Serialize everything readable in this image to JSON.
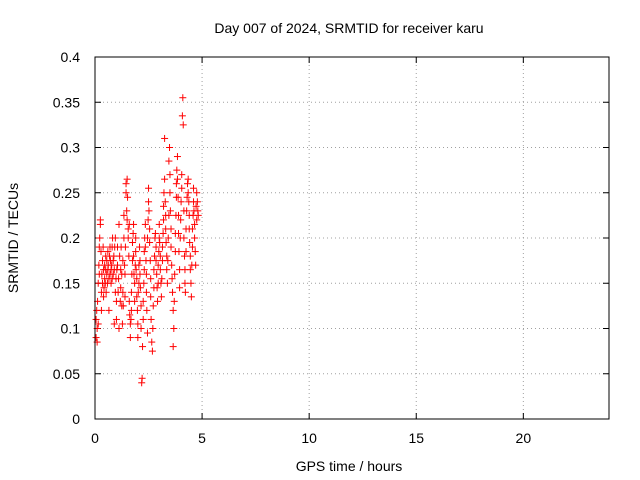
{
  "chart_data": {
    "type": "scatter",
    "title": "Day 007 of 2024, SRMTID for receiver karu",
    "xlabel": "GPS time / hours",
    "ylabel": "SRMTID / TECUs",
    "xlim": [
      0,
      24
    ],
    "ylim": [
      0,
      0.4
    ],
    "x_ticks": [
      0,
      5,
      10,
      15,
      20
    ],
    "x_tick_labels": [
      "0",
      "5",
      "10",
      "15",
      "20"
    ],
    "y_ticks": [
      0,
      0.05,
      0.1,
      0.15,
      0.2,
      0.25,
      0.3,
      0.35,
      0.4
    ],
    "y_tick_labels": [
      "0",
      "0.05",
      "0.1",
      "0.15",
      "0.2",
      "0.25",
      "0.3",
      "0.35",
      "0.4"
    ],
    "grid": true,
    "marker": "plus",
    "color": "#ff0000",
    "series": [
      {
        "name": "SRMTID",
        "points": [
          [
            0.05,
            0.09
          ],
          [
            0.05,
            0.11
          ],
          [
            0.08,
            0.12
          ],
          [
            0.1,
            0.085
          ],
          [
            0.1,
            0.1
          ],
          [
            0.12,
            0.13
          ],
          [
            0.15,
            0.15
          ],
          [
            0.15,
            0.105
          ],
          [
            0.18,
            0.17
          ],
          [
            0.2,
            0.19
          ],
          [
            0.2,
            0.16
          ],
          [
            0.22,
            0.2
          ],
          [
            0.25,
            0.215
          ],
          [
            0.25,
            0.22
          ],
          [
            0.28,
            0.185
          ],
          [
            0.3,
            0.14
          ],
          [
            0.3,
            0.12
          ],
          [
            0.32,
            0.16
          ],
          [
            0.35,
            0.175
          ],
          [
            0.35,
            0.15
          ],
          [
            0.38,
            0.19
          ],
          [
            0.4,
            0.135
          ],
          [
            0.4,
            0.165
          ],
          [
            0.42,
            0.145
          ],
          [
            0.45,
            0.17
          ],
          [
            0.45,
            0.155
          ],
          [
            0.48,
            0.15
          ],
          [
            0.5,
            0.18
          ],
          [
            0.5,
            0.165
          ],
          [
            0.52,
            0.14
          ],
          [
            0.55,
            0.16
          ],
          [
            0.55,
            0.175
          ],
          [
            0.58,
            0.15
          ],
          [
            0.6,
            0.165
          ],
          [
            0.6,
            0.185
          ],
          [
            0.62,
            0.17
          ],
          [
            0.65,
            0.155
          ],
          [
            0.65,
            0.12
          ],
          [
            0.68,
            0.18
          ],
          [
            0.7,
            0.16
          ],
          [
            0.7,
            0.19
          ],
          [
            0.72,
            0.175
          ],
          [
            0.75,
            0.15
          ],
          [
            0.75,
            0.165
          ],
          [
            0.78,
            0.17
          ],
          [
            0.8,
            0.155
          ],
          [
            0.8,
            0.19
          ],
          [
            0.82,
            0.2
          ],
          [
            0.85,
            0.175
          ],
          [
            0.85,
            0.16
          ],
          [
            0.88,
            0.18
          ],
          [
            0.9,
            0.165
          ],
          [
            0.9,
            0.105
          ],
          [
            0.92,
            0.19
          ],
          [
            0.95,
            0.2
          ],
          [
            0.95,
            0.14
          ],
          [
            0.98,
            0.155
          ],
          [
            1.0,
            0.11
          ],
          [
            1.0,
            0.13
          ],
          [
            1.02,
            0.165
          ],
          [
            1.05,
            0.17
          ],
          [
            1.05,
            0.19
          ],
          [
            1.08,
            0.14
          ],
          [
            1.1,
            0.155
          ],
          [
            1.12,
            0.215
          ],
          [
            1.12,
            0.1
          ],
          [
            1.15,
            0.18
          ],
          [
            1.18,
            0.13
          ],
          [
            1.2,
            0.145
          ],
          [
            1.2,
            0.165
          ],
          [
            1.22,
            0.19
          ],
          [
            1.25,
            0.16
          ],
          [
            1.25,
            0.125
          ],
          [
            1.28,
            0.105
          ],
          [
            1.3,
            0.14
          ],
          [
            1.3,
            0.175
          ],
          [
            1.32,
            0.125
          ],
          [
            1.35,
            0.225
          ],
          [
            1.35,
            0.2
          ],
          [
            1.38,
            0.17
          ],
          [
            1.4,
            0.135
          ],
          [
            1.4,
            0.16
          ],
          [
            1.42,
            0.19
          ],
          [
            1.45,
            0.26
          ],
          [
            1.45,
            0.25
          ],
          [
            1.48,
            0.23
          ],
          [
            1.5,
            0.22
          ],
          [
            1.5,
            0.265
          ],
          [
            1.52,
            0.245
          ],
          [
            1.55,
            0.21
          ],
          [
            1.55,
            0.2
          ],
          [
            1.58,
            0.18
          ],
          [
            1.6,
            0.215
          ],
          [
            1.6,
            0.13
          ],
          [
            1.62,
            0.115
          ],
          [
            1.65,
            0.105
          ],
          [
            1.65,
            0.09
          ],
          [
            1.68,
            0.11
          ],
          [
            1.7,
            0.12
          ],
          [
            1.7,
            0.14
          ],
          [
            1.72,
            0.16
          ],
          [
            1.75,
            0.175
          ],
          [
            1.75,
            0.195
          ],
          [
            1.78,
            0.205
          ],
          [
            1.8,
            0.215
          ],
          [
            1.8,
            0.18
          ],
          [
            1.82,
            0.16
          ],
          [
            1.85,
            0.15
          ],
          [
            1.85,
            0.13
          ],
          [
            1.88,
            0.17
          ],
          [
            1.9,
            0.185
          ],
          [
            1.9,
            0.2
          ],
          [
            1.92,
            0.165
          ],
          [
            1.95,
            0.155
          ],
          [
            1.95,
            0.135
          ],
          [
            1.98,
            0.12
          ],
          [
            2.0,
            0.105
          ],
          [
            2.0,
            0.09
          ],
          [
            2.02,
            0.14
          ],
          [
            2.05,
            0.15
          ],
          [
            2.05,
            0.17
          ],
          [
            2.08,
            0.19
          ],
          [
            2.1,
            0.175
          ],
          [
            2.1,
            0.16
          ],
          [
            2.12,
            0.145
          ],
          [
            2.15,
            0.125
          ],
          [
            2.15,
            0.1
          ],
          [
            2.18,
            0.04
          ],
          [
            2.2,
            0.045
          ],
          [
            2.22,
            0.08
          ],
          [
            2.25,
            0.11
          ],
          [
            2.25,
            0.13
          ],
          [
            2.28,
            0.15
          ],
          [
            2.3,
            0.165
          ],
          [
            2.3,
            0.185
          ],
          [
            2.32,
            0.2
          ],
          [
            2.35,
            0.215
          ],
          [
            2.35,
            0.19
          ],
          [
            2.38,
            0.175
          ],
          [
            2.4,
            0.16
          ],
          [
            2.4,
            0.14
          ],
          [
            2.42,
            0.12
          ],
          [
            2.45,
            0.095
          ],
          [
            2.45,
            0.2
          ],
          [
            2.48,
            0.22
          ],
          [
            2.5,
            0.24
          ],
          [
            2.5,
            0.255
          ],
          [
            2.52,
            0.23
          ],
          [
            2.55,
            0.21
          ],
          [
            2.55,
            0.195
          ],
          [
            2.58,
            0.175
          ],
          [
            2.6,
            0.155
          ],
          [
            2.6,
            0.135
          ],
          [
            2.62,
            0.11
          ],
          [
            2.65,
            0.085
          ],
          [
            2.68,
            0.075
          ],
          [
            2.7,
            0.1
          ],
          [
            2.72,
            0.125
          ],
          [
            2.75,
            0.145
          ],
          [
            2.75,
            0.165
          ],
          [
            2.78,
            0.18
          ],
          [
            2.8,
            0.2
          ],
          [
            2.82,
            0.205
          ],
          [
            2.85,
            0.19
          ],
          [
            2.85,
            0.175
          ],
          [
            2.88,
            0.16
          ],
          [
            2.9,
            0.145
          ],
          [
            2.92,
            0.13
          ],
          [
            2.95,
            0.15
          ],
          [
            2.95,
            0.17
          ],
          [
            2.98,
            0.185
          ],
          [
            3.0,
            0.2
          ],
          [
            3.0,
            0.215
          ],
          [
            3.02,
            0.195
          ],
          [
            3.05,
            0.18
          ],
          [
            3.05,
            0.165
          ],
          [
            3.08,
            0.15
          ],
          [
            3.1,
            0.135
          ],
          [
            3.12,
            0.155
          ],
          [
            3.15,
            0.175
          ],
          [
            3.15,
            0.19
          ],
          [
            3.18,
            0.205
          ],
          [
            3.2,
            0.22
          ],
          [
            3.2,
            0.235
          ],
          [
            3.22,
            0.25
          ],
          [
            3.25,
            0.265
          ],
          [
            3.25,
            0.31
          ],
          [
            3.28,
            0.24
          ],
          [
            3.3,
            0.225
          ],
          [
            3.3,
            0.21
          ],
          [
            3.32,
            0.195
          ],
          [
            3.35,
            0.18
          ],
          [
            3.35,
            0.165
          ],
          [
            3.38,
            0.15
          ],
          [
            3.4,
            0.175
          ],
          [
            3.42,
            0.2
          ],
          [
            3.45,
            0.225
          ],
          [
            3.45,
            0.285
          ],
          [
            3.48,
            0.3
          ],
          [
            3.5,
            0.27
          ],
          [
            3.5,
            0.25
          ],
          [
            3.52,
            0.23
          ],
          [
            3.55,
            0.21
          ],
          [
            3.55,
            0.19
          ],
          [
            3.58,
            0.17
          ],
          [
            3.6,
            0.155
          ],
          [
            3.62,
            0.14
          ],
          [
            3.65,
            0.12
          ],
          [
            3.65,
            0.08
          ],
          [
            3.68,
            0.1
          ],
          [
            3.7,
            0.13
          ],
          [
            3.72,
            0.16
          ],
          [
            3.75,
            0.185
          ],
          [
            3.75,
            0.205
          ],
          [
            3.78,
            0.225
          ],
          [
            3.8,
            0.245
          ],
          [
            3.8,
            0.26
          ],
          [
            3.82,
            0.275
          ],
          [
            3.85,
            0.29
          ],
          [
            3.85,
            0.265
          ],
          [
            3.88,
            0.245
          ],
          [
            3.9,
            0.225
          ],
          [
            3.9,
            0.205
          ],
          [
            3.92,
            0.185
          ],
          [
            3.95,
            0.165
          ],
          [
            3.95,
            0.145
          ],
          [
            3.98,
            0.2
          ],
          [
            4.0,
            0.22
          ],
          [
            4.02,
            0.24
          ],
          [
            4.05,
            0.255
          ],
          [
            4.05,
            0.27
          ],
          [
            4.08,
            0.335
          ],
          [
            4.1,
            0.355
          ],
          [
            4.12,
            0.325
          ],
          [
            4.15,
            0.23
          ],
          [
            4.15,
            0.2
          ],
          [
            4.18,
            0.18
          ],
          [
            4.2,
            0.165
          ],
          [
            4.2,
            0.15
          ],
          [
            4.22,
            0.14
          ],
          [
            4.25,
            0.185
          ],
          [
            4.25,
            0.21
          ],
          [
            4.28,
            0.23
          ],
          [
            4.3,
            0.245
          ],
          [
            4.32,
            0.26
          ],
          [
            4.35,
            0.265
          ],
          [
            4.35,
            0.25
          ],
          [
            4.38,
            0.24
          ],
          [
            4.4,
            0.225
          ],
          [
            4.4,
            0.21
          ],
          [
            4.42,
            0.195
          ],
          [
            4.45,
            0.18
          ],
          [
            4.45,
            0.165
          ],
          [
            4.48,
            0.15
          ],
          [
            4.5,
            0.135
          ],
          [
            4.52,
            0.17
          ],
          [
            4.55,
            0.19
          ],
          [
            4.55,
            0.21
          ],
          [
            4.58,
            0.225
          ],
          [
            4.6,
            0.24
          ],
          [
            4.6,
            0.255
          ],
          [
            4.62,
            0.23
          ],
          [
            4.65,
            0.215
          ],
          [
            4.65,
            0.2
          ],
          [
            4.68,
            0.185
          ],
          [
            4.7,
            0.17
          ],
          [
            4.72,
            0.235
          ],
          [
            4.75,
            0.25
          ],
          [
            4.75,
            0.22
          ],
          [
            4.78,
            0.24
          ],
          [
            4.8,
            0.23
          ],
          [
            4.82,
            0.225
          ]
        ]
      }
    ]
  }
}
